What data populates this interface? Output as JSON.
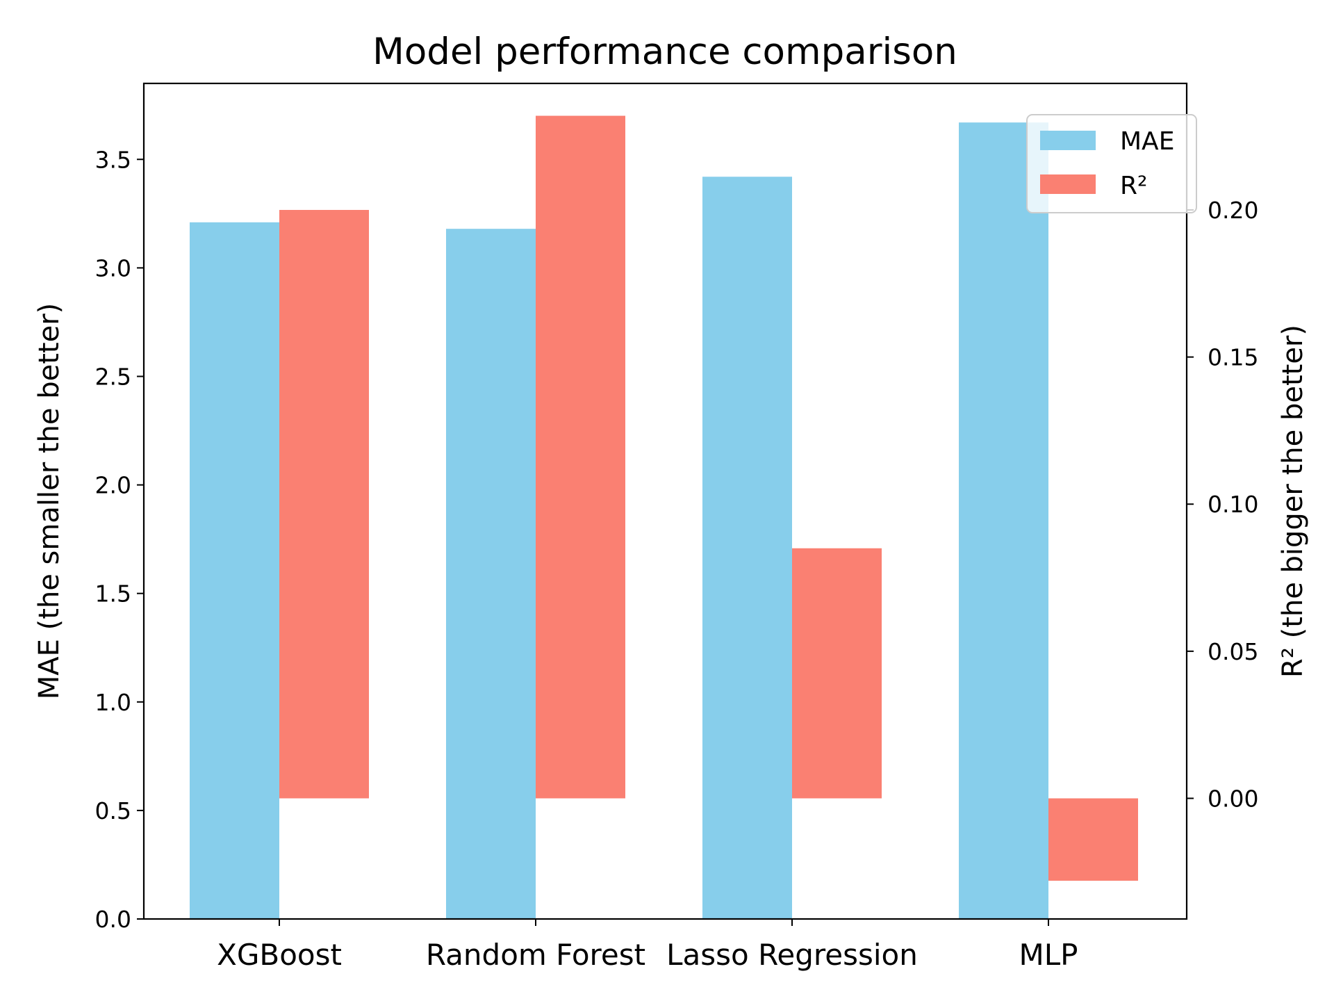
{
  "chart_data": {
    "type": "bar",
    "title": "Model performance comparison",
    "categories": [
      "XGBoost",
      "Random Forest",
      "Lasso Regression",
      "MLP"
    ],
    "series": [
      {
        "name": "MAE",
        "axis": "left",
        "color": "#87CEEB",
        "values": [
          3.21,
          3.18,
          3.42,
          3.67
        ]
      },
      {
        "name": "R²",
        "axis": "right",
        "color": "#FA8072",
        "values": [
          0.2,
          0.232,
          0.085,
          -0.028
        ]
      }
    ],
    "ylabel": "MAE (the smaller the better)",
    "ylabel_right": "R² (the bigger the better)",
    "ylim": [
      0,
      3.85
    ],
    "ylim_right": [
      -0.041,
      0.243
    ],
    "yticks": [
      "0.0",
      "0.5",
      "1.0",
      "1.5",
      "2.0",
      "2.5",
      "3.0",
      "3.5"
    ],
    "yticks_right": [
      "0.00",
      "0.05",
      "0.10",
      "0.15",
      "0.20"
    ],
    "legend_position": "top-right",
    "grid": false
  }
}
